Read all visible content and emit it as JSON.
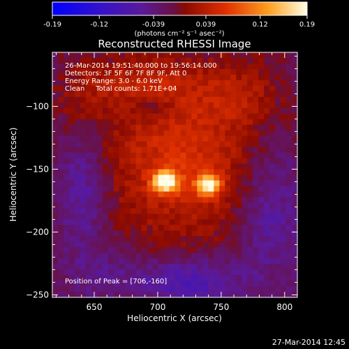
{
  "chart_data": {
    "type": "heatmap",
    "title": "Reconstructed RHESSI Image",
    "xlabel": "Heliocentric X (arcsec)",
    "ylabel": "Heliocentric Y (arcsec)",
    "xlim": [
      617,
      810
    ],
    "ylim": [
      -252,
      -57
    ],
    "x_ticks": [
      650,
      700,
      750,
      800
    ],
    "y_ticks": [
      -100,
      -150,
      -200,
      -250
    ],
    "colorbar": {
      "ticks": [
        -0.19,
        -0.12,
        -0.039,
        0.039,
        0.12,
        0.19
      ],
      "tick_labels": [
        "-0.19",
        "-0.12",
        "-0.039",
        "0.039",
        "0.12",
        "0.19"
      ],
      "range": [
        -0.19,
        0.19
      ],
      "unit_label": "(photons cm⁻² s⁻¹ asec⁻²)"
    },
    "sources": [
      {
        "x": 706,
        "y": -160,
        "peak": 0.19
      },
      {
        "x": 740,
        "y": -163,
        "peak": 0.16
      }
    ],
    "annotations": [
      "26-Mar-2014 19:51:40.000 to 19:56:14.000",
      "Detectors: 3F 5F 6F 7F 8F 9F, Att 0",
      "Energy Range: 3.0 - 6.0 keV",
      "Clean     Total counts: 1.71E+04"
    ],
    "peak_label": "Position of Peak = [706,-160]",
    "footer_date": "27-Mar-2014 12:45"
  }
}
